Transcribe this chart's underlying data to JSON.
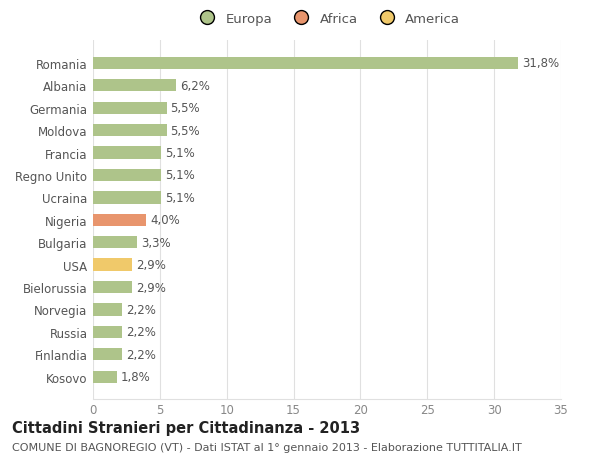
{
  "categories": [
    "Romania",
    "Albania",
    "Germania",
    "Moldova",
    "Francia",
    "Regno Unito",
    "Ucraina",
    "Nigeria",
    "Bulgaria",
    "USA",
    "Bielorussia",
    "Norvegia",
    "Russia",
    "Finlandia",
    "Kosovo"
  ],
  "values": [
    31.8,
    6.2,
    5.5,
    5.5,
    5.1,
    5.1,
    5.1,
    4.0,
    3.3,
    2.9,
    2.9,
    2.2,
    2.2,
    2.2,
    1.8
  ],
  "labels": [
    "31,8%",
    "6,2%",
    "5,5%",
    "5,5%",
    "5,1%",
    "5,1%",
    "5,1%",
    "4,0%",
    "3,3%",
    "2,9%",
    "2,9%",
    "2,2%",
    "2,2%",
    "2,2%",
    "1,8%"
  ],
  "bar_colors": [
    "#aec48a",
    "#aec48a",
    "#aec48a",
    "#aec48a",
    "#aec48a",
    "#aec48a",
    "#aec48a",
    "#e8956d",
    "#aec48a",
    "#f0c96a",
    "#aec48a",
    "#aec48a",
    "#aec48a",
    "#aec48a",
    "#aec48a"
  ],
  "legend_labels": [
    "Europa",
    "Africa",
    "America"
  ],
  "legend_colors": [
    "#aec48a",
    "#e8956d",
    "#f0c96a"
  ],
  "title": "Cittadini Stranieri per Cittadinanza - 2013",
  "subtitle": "COMUNE DI BAGNOREGIO (VT) - Dati ISTAT al 1° gennaio 2013 - Elaborazione TUTTITALIA.IT",
  "xlim": [
    0,
    35
  ],
  "xticks": [
    0,
    5,
    10,
    15,
    20,
    25,
    30,
    35
  ],
  "background_color": "#ffffff",
  "grid_color": "#e0e0e0",
  "bar_height": 0.55,
  "label_fontsize": 8.5,
  "title_fontsize": 10.5,
  "subtitle_fontsize": 8,
  "tick_fontsize": 8.5,
  "legend_fontsize": 9.5
}
